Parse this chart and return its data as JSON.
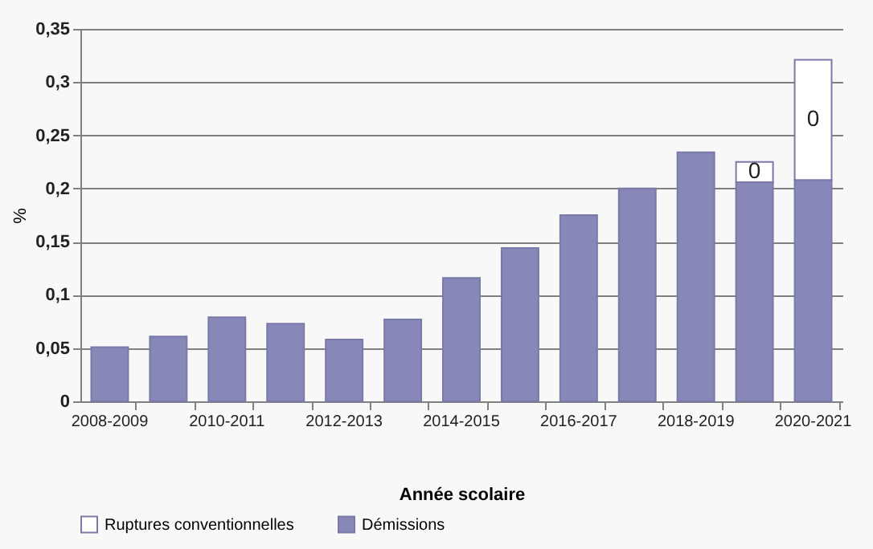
{
  "chart_data": {
    "type": "bar",
    "stacked": true,
    "xlabel": "Année scolaire",
    "ylabel": "%",
    "categories": [
      "2008-2009",
      null,
      "2010-2011",
      null,
      "2012-2013",
      null,
      "2014-2015",
      null,
      "2016-2017",
      null,
      "2018-2019",
      null,
      "2020-2021"
    ],
    "series": [
      {
        "name": "Démissions",
        "color": "#8888b8",
        "values": [
          0.051,
          0.061,
          0.079,
          0.073,
          0.058,
          0.077,
          0.116,
          0.144,
          0.175,
          0.2,
          0.234,
          0.206,
          0.208
        ]
      },
      {
        "name": "Ruptures conventionnelles",
        "color": "#ffffff",
        "values": [
          null,
          null,
          null,
          null,
          null,
          null,
          null,
          null,
          null,
          null,
          null,
          0.019,
          0.113
        ],
        "value_labels": [
          null,
          null,
          null,
          null,
          null,
          null,
          null,
          null,
          null,
          null,
          null,
          "0",
          "0"
        ]
      }
    ],
    "ylim": [
      0,
      0.35
    ],
    "yticks": [
      {
        "value": 0,
        "label": "0"
      },
      {
        "value": 0.05,
        "label": "0,05"
      },
      {
        "value": 0.1,
        "label": "0,1"
      },
      {
        "value": 0.15,
        "label": "0,15"
      },
      {
        "value": 0.2,
        "label": "0,2"
      },
      {
        "value": 0.25,
        "label": "0,25"
      },
      {
        "value": 0.3,
        "label": "0,3"
      },
      {
        "value": 0.35,
        "label": "0,35"
      }
    ],
    "grid": "y",
    "legend": "bottom"
  }
}
